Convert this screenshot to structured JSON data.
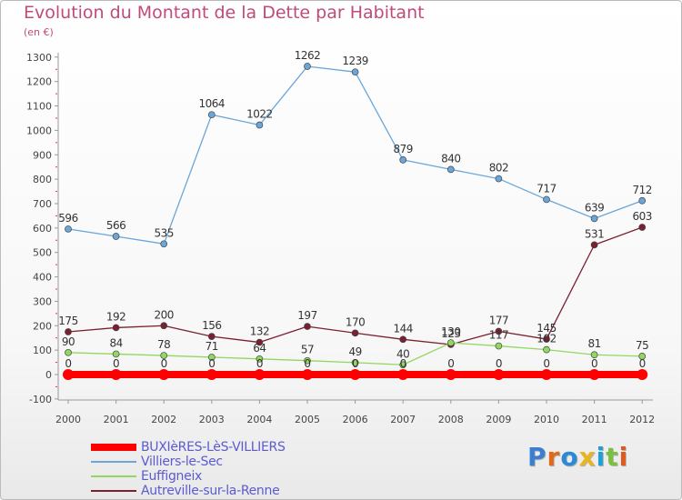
{
  "title": "Evolution du Montant de la Dette par Habitant",
  "subtitle": "(en €)",
  "logo": {
    "text": "Proxiti",
    "colors": [
      "#3a7fd0",
      "#e06a1a",
      "#2b8ad8",
      "#e8b51e",
      "#1e9fd8",
      "#7ac143",
      "#e0581a"
    ]
  },
  "chart_data": {
    "type": "line",
    "title": "Evolution du Montant de la Dette par Habitant",
    "subtitle": "(en €)",
    "xlabel": "",
    "ylabel": "",
    "x": [
      "2000",
      "2001",
      "2002",
      "2003",
      "2004",
      "2005",
      "2006",
      "2007",
      "2008",
      "2009",
      "2010",
      "2011",
      "2012"
    ],
    "ylim": [
      -100,
      1300
    ],
    "yticks": [
      -100,
      0,
      100,
      200,
      300,
      400,
      500,
      600,
      700,
      800,
      900,
      1000,
      1100,
      1200,
      1300
    ],
    "grid": false,
    "legend_position": "bottom",
    "series": [
      {
        "name": "BUXIèRES-LèS-VILLIERS",
        "color": "#ff0000",
        "values": [
          0,
          0,
          0,
          0,
          0,
          0,
          0,
          0,
          0,
          0,
          0,
          0,
          0
        ]
      },
      {
        "name": "Villiers-le-Sec",
        "color": "#6aa6d8",
        "values": [
          596,
          566,
          535,
          1064,
          1022,
          1262,
          1239,
          879,
          840,
          802,
          717,
          639,
          712
        ]
      },
      {
        "name": "Euffigneix",
        "color": "#90d860",
        "values": [
          90,
          84,
          78,
          71,
          64,
          57,
          49,
          40,
          130,
          117,
          102,
          81,
          75
        ]
      },
      {
        "name": "Autreville-sur-la-Renne",
        "color": "#7a2030",
        "values": [
          175,
          192,
          200,
          156,
          132,
          197,
          170,
          144,
          123,
          177,
          145,
          531,
          603
        ]
      }
    ]
  }
}
